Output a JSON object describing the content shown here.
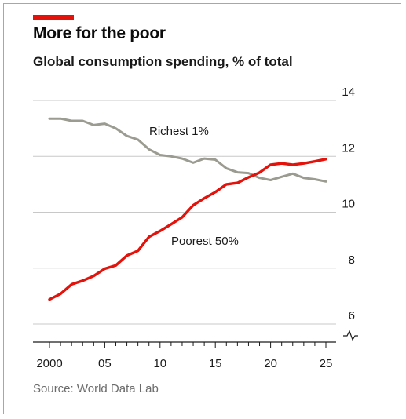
{
  "header": {
    "title": "More for the poor",
    "subtitle": "Global consumption spending, % of total"
  },
  "footer": {
    "source": "Source: World Data Lab"
  },
  "colors": {
    "accent": "#e3120b",
    "richest": "#9b9b91",
    "poorest": "#e3120b",
    "grid": "#c8c8c8",
    "axis": "#1a1a1a"
  },
  "chart_data": {
    "type": "line",
    "title": "Global consumption spending, % of total",
    "x_tick_labels": [
      "2000",
      "05",
      "10",
      "15",
      "20",
      "25"
    ],
    "x_ticks": [
      2000,
      2005,
      2010,
      2015,
      2020,
      2025
    ],
    "xlim": [
      2000,
      2025
    ],
    "ylim": [
      6,
      14
    ],
    "y_ticks": [
      6,
      8,
      10,
      12,
      14
    ],
    "y_tick_labels": [
      "6",
      "8",
      "10",
      "12",
      "14"
    ],
    "y_axis_side": "right",
    "y_axis_break": true,
    "grid": "horizontal",
    "series": [
      {
        "name": "Richest 1%",
        "color": "#9b9b91",
        "x": [
          2000,
          2001,
          2002,
          2003,
          2004,
          2005,
          2006,
          2007,
          2008,
          2009,
          2010,
          2011,
          2012,
          2013,
          2014,
          2015,
          2016,
          2017,
          2018,
          2019,
          2020,
          2021,
          2022,
          2023,
          2024,
          2025
        ],
        "values": [
          13.35,
          13.35,
          13.27,
          13.27,
          13.12,
          13.17,
          13.0,
          12.73,
          12.6,
          12.25,
          12.05,
          12.0,
          11.92,
          11.77,
          11.92,
          11.88,
          11.57,
          11.43,
          11.4,
          11.23,
          11.15,
          11.27,
          11.38,
          11.23,
          11.18,
          11.1
        ]
      },
      {
        "name": "Poorest 50%",
        "color": "#e3120b",
        "x": [
          2000,
          2001,
          2002,
          2003,
          2004,
          2005,
          2006,
          2007,
          2008,
          2009,
          2010,
          2011,
          2012,
          2013,
          2014,
          2015,
          2016,
          2017,
          2018,
          2019,
          2020,
          2021,
          2022,
          2023,
          2024,
          2025
        ],
        "values": [
          6.88,
          7.08,
          7.42,
          7.55,
          7.72,
          7.98,
          8.1,
          8.45,
          8.62,
          9.12,
          9.33,
          9.57,
          9.82,
          10.25,
          10.5,
          10.72,
          11.0,
          11.05,
          11.25,
          11.42,
          11.7,
          11.75,
          11.7,
          11.75,
          11.82,
          11.9
        ]
      }
    ]
  }
}
